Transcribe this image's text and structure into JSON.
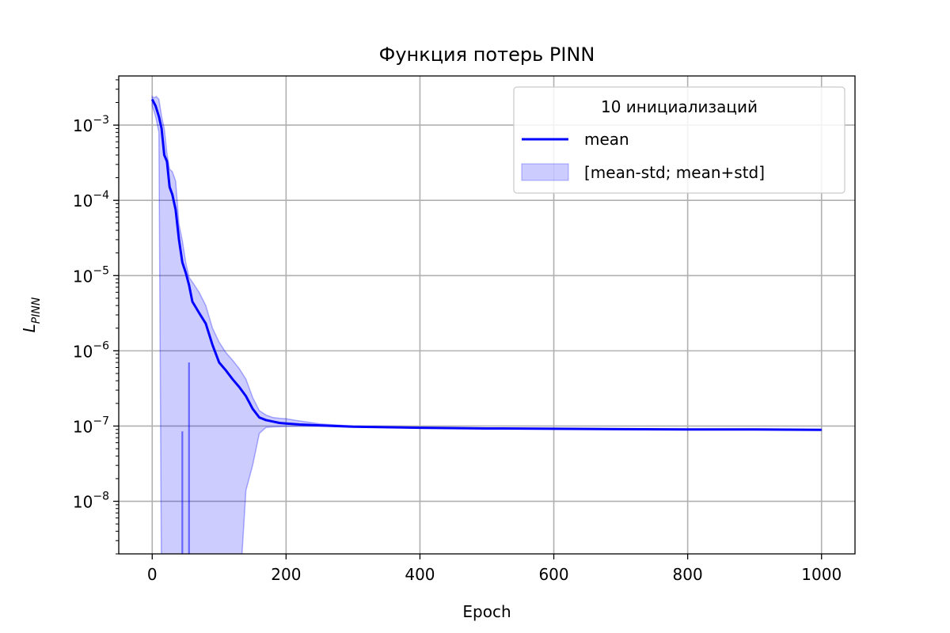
{
  "chart_data": {
    "type": "line",
    "title": "Функция потерь PINN",
    "xlabel": "Epoch",
    "ylabel_main": "L",
    "ylabel_sub": "PINN",
    "y_scale": "log",
    "xlim": [
      -50,
      1050
    ],
    "ylim": [
      2e-09,
      0.0045
    ],
    "grid": true,
    "x_ticks": [
      {
        "value": 0,
        "label": "0"
      },
      {
        "value": 200,
        "label": "200"
      },
      {
        "value": 400,
        "label": "400"
      },
      {
        "value": 600,
        "label": "600"
      },
      {
        "value": 800,
        "label": "800"
      },
      {
        "value": 1000,
        "label": "1000"
      }
    ],
    "y_ticks": [
      {
        "value": 1e-08,
        "base": "10",
        "exp": "−8"
      },
      {
        "value": 1e-07,
        "base": "10",
        "exp": "−7"
      },
      {
        "value": 1e-06,
        "base": "10",
        "exp": "−6"
      },
      {
        "value": 1e-05,
        "base": "10",
        "exp": "−5"
      },
      {
        "value": 0.0001,
        "base": "10",
        "exp": "−4"
      },
      {
        "value": 0.001,
        "base": "10",
        "exp": "−3"
      }
    ],
    "legend": {
      "title": "10 инициализаций",
      "position": "top-right",
      "entries": [
        "mean",
        "[mean-std; mean+std]"
      ]
    },
    "colors": {
      "line": "#0000ff",
      "band_fill": "#0000ff",
      "grid": "#b0b0b0"
    },
    "series": [
      {
        "name": "mean",
        "x": [
          0,
          5,
          10,
          14,
          18,
          22,
          26,
          30,
          35,
          40,
          45,
          50,
          55,
          60,
          65,
          70,
          80,
          90,
          100,
          110,
          120,
          130,
          140,
          150,
          160,
          170,
          180,
          190,
          200,
          220,
          250,
          300,
          400,
          500,
          600,
          700,
          800,
          900,
          1000
        ],
        "y": [
          0.0022,
          0.0018,
          0.0013,
          0.0009,
          0.0004,
          0.00033,
          0.00015,
          0.00012,
          7.5e-05,
          3e-05,
          1.5e-05,
          1.1e-05,
          7.5e-06,
          4.5e-06,
          3.8e-06,
          3.2e-06,
          2.3e-06,
          1.2e-06,
          7e-07,
          5.5e-07,
          4.2e-07,
          3.3e-07,
          2.5e-07,
          1.7e-07,
          1.3e-07,
          1.2e-07,
          1.15e-07,
          1.1e-07,
          1.08e-07,
          1.05e-07,
          1.02e-07,
          9.8e-08,
          9.5e-08,
          9.3e-08,
          9.2e-08,
          9.1e-08,
          9e-08,
          9e-08,
          8.9e-08
        ]
      }
    ],
    "band": {
      "name": "[mean-std; mean+std]",
      "x": [
        0,
        3,
        6,
        10,
        14,
        18,
        22,
        26,
        30,
        35,
        40,
        45,
        50,
        55,
        60,
        70,
        80,
        90,
        100,
        110,
        120,
        130,
        140,
        150,
        160,
        170,
        180,
        190,
        200,
        220,
        250,
        300,
        400,
        500,
        600,
        700,
        800,
        900,
        1000
      ],
      "upper": [
        0.0024,
        0.0023,
        0.0024,
        0.0022,
        0.0013,
        0.0009,
        0.00042,
        0.00026,
        0.00024,
        0.00018,
        4.8e-05,
        2.9e-05,
        1.5e-05,
        9.5e-06,
        8.2e-06,
        6e-06,
        4e-06,
        2e-06,
        1.3e-06,
        9.5e-07,
        7.5e-07,
        5.8e-07,
        4.2e-07,
        2.4e-07,
        1.6e-07,
        1.4e-07,
        1.3e-07,
        1.27e-07,
        1.25e-07,
        1.17e-07,
        1.07e-07,
        1e-07,
        9.6e-08,
        9.4e-08,
        9.3e-08,
        9.2e-08,
        9.1e-08,
        9e-08,
        9e-08
      ],
      "lower": [
        0.0018,
        0.0015,
        0.0012,
        0.0008,
        5e-10,
        5e-10,
        5e-10,
        5e-10,
        5e-10,
        5e-10,
        5e-10,
        5e-10,
        5e-10,
        5e-10,
        5e-10,
        5e-10,
        5e-10,
        5e-10,
        5e-10,
        5e-10,
        5e-10,
        5e-10,
        1.4e-08,
        3e-08,
        8e-08,
        9.6e-08,
        9.75e-08,
        9.8e-08,
        9.9e-08,
        9.95e-08,
        1e-07,
        9.7e-08,
        9.4e-08,
        9.3e-08,
        9.2e-08,
        9.1e-08,
        9e-08,
        8.9e-08,
        8.8e-08
      ]
    },
    "band_spikes": [
      {
        "x": 55,
        "y_low": 2e-09,
        "y_high": 7e-07
      },
      {
        "x": 45,
        "y_low": 2e-09,
        "y_high": 8.5e-08
      }
    ]
  }
}
